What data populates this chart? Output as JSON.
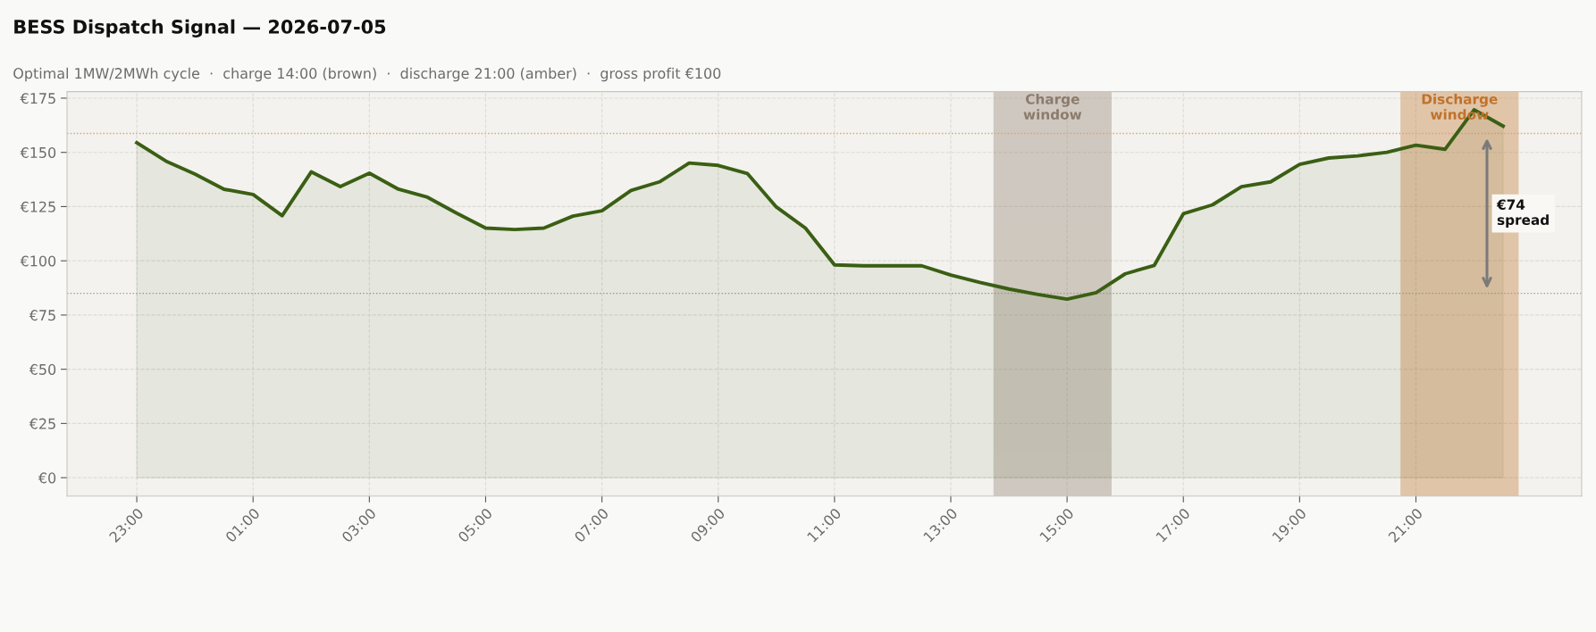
{
  "chart_data": {
    "type": "area",
    "title": "BESS Dispatch Signal — 2026-07-05",
    "subtitle": "Optimal 1MW/2MWh cycle  ·  charge 14:00 (brown)  ·  discharge 21:00 (amber)  ·  gross profit €100",
    "x": [
      "2026-07-04T23:00",
      "2026-07-04T23:30",
      "2026-07-05T00:00",
      "2026-07-05T00:30",
      "2026-07-05T01:00",
      "2026-07-05T01:30",
      "2026-07-05T02:00",
      "2026-07-05T02:30",
      "2026-07-05T03:00",
      "2026-07-05T03:30",
      "2026-07-05T04:00",
      "2026-07-05T04:30",
      "2026-07-05T05:00",
      "2026-07-05T05:30",
      "2026-07-05T06:00",
      "2026-07-05T06:30",
      "2026-07-05T07:00",
      "2026-07-05T07:30",
      "2026-07-05T08:00",
      "2026-07-05T08:30",
      "2026-07-05T09:00",
      "2026-07-05T09:30",
      "2026-07-05T10:00",
      "2026-07-05T10:30",
      "2026-07-05T11:00",
      "2026-07-05T11:30",
      "2026-07-05T12:00",
      "2026-07-05T12:30",
      "2026-07-05T13:00",
      "2026-07-05T13:30",
      "2026-07-05T14:00",
      "2026-07-05T14:30",
      "2026-07-05T15:00",
      "2026-07-05T15:30",
      "2026-07-05T16:00",
      "2026-07-05T16:30",
      "2026-07-05T17:00",
      "2026-07-05T17:30",
      "2026-07-05T18:00",
      "2026-07-05T18:30",
      "2026-07-05T19:00",
      "2026-07-05T19:30",
      "2026-07-05T20:00",
      "2026-07-05T20:30",
      "2026-07-05T21:00",
      "2026-07-05T21:30",
      "2026-07-05T22:00",
      "2026-07-05T22:30"
    ],
    "series": [
      {
        "color": "#3a5f14",
        "values": [
          154.4,
          146,
          140,
          133,
          130.6,
          120.8,
          141,
          134.2,
          140.4,
          133,
          129.3,
          122,
          115.1,
          114.4,
          115.1,
          120.6,
          123.1,
          132.4,
          136.5,
          145.1,
          144,
          140.3,
          124.8,
          115.1,
          98.1,
          97.7,
          97.7,
          97.7,
          93.4,
          90,
          87,
          84.5,
          82.3,
          85.3,
          94,
          97.9,
          121.7,
          125.8,
          134.2,
          136.4,
          144.5,
          147.4,
          148.4,
          150,
          153.3,
          151.4,
          169.6,
          162.1
        ]
      }
    ],
    "xlim": [
      "2026-07-04T21:48",
      "2026-07-05T23:51"
    ],
    "ylim": [
      -8.5,
      178
    ],
    "xticks": [
      {
        "value": "2026-07-04T23:00",
        "label": "23:00"
      },
      {
        "value": "2026-07-05T01:00",
        "label": "01:00"
      },
      {
        "value": "2026-07-05T03:00",
        "label": "03:00"
      },
      {
        "value": "2026-07-05T05:00",
        "label": "05:00"
      },
      {
        "value": "2026-07-05T07:00",
        "label": "07:00"
      },
      {
        "value": "2026-07-05T09:00",
        "label": "09:00"
      },
      {
        "value": "2026-07-05T11:00",
        "label": "11:00"
      },
      {
        "value": "2026-07-05T13:00",
        "label": "13:00"
      },
      {
        "value": "2026-07-05T15:00",
        "label": "15:00"
      },
      {
        "value": "2026-07-05T17:00",
        "label": "17:00"
      },
      {
        "value": "2026-07-05T19:00",
        "label": "19:00"
      },
      {
        "value": "2026-07-05T21:00",
        "label": "21:00"
      }
    ],
    "yticks": [
      {
        "value": 0,
        "label": "€0"
      },
      {
        "value": 25,
        "label": "€25"
      },
      {
        "value": 50,
        "label": "€50"
      },
      {
        "value": 75,
        "label": "€75"
      },
      {
        "value": 100,
        "label": "€100"
      },
      {
        "value": 125,
        "label": "€125"
      },
      {
        "value": 150,
        "label": "€150"
      },
      {
        "value": 175,
        "label": "€175"
      }
    ],
    "bands": [
      {
        "axis": "x",
        "from": "2026-07-05T13:45",
        "to": "2026-07-05T15:45",
        "label": "Charge\nwindow",
        "color": "#8c7b6b"
      },
      {
        "axis": "x",
        "from": "2026-07-05T20:45",
        "to": "2026-07-05T22:45",
        "label": "Discharge\nwindow",
        "color": "#c0722a"
      }
    ],
    "ref_lines": [
      {
        "axis": "y",
        "value": 158.7,
        "color": "#d9a070",
        "line_style": "dotted"
      },
      {
        "axis": "y",
        "value": 85,
        "color": "#9a9a8a",
        "line_style": "dotted"
      }
    ],
    "annotations": [
      "€74\nspread"
    ],
    "grid": true,
    "line_style": "solid",
    "marker": "none"
  }
}
